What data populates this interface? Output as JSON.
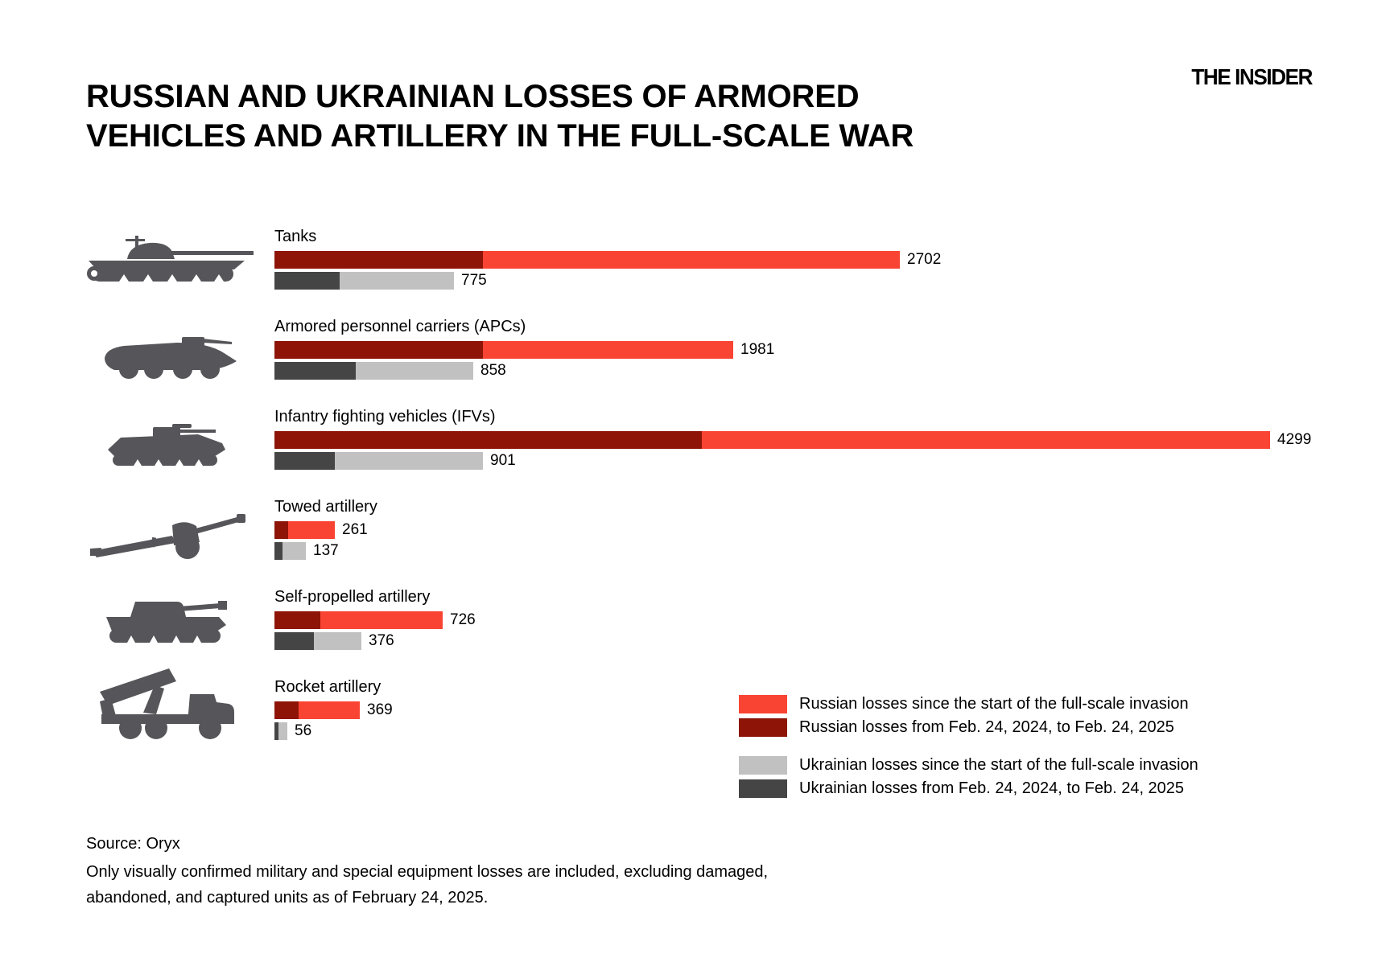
{
  "page": {
    "brand": "THE INSIDER",
    "source": "Source: Oryx",
    "note": "Only visually confirmed military and special equipment losses are included, excluding damaged, abandoned, and captured units as of February 24, 2025."
  },
  "colors": {
    "background": "#FFFFFF",
    "text": "#000000",
    "russian_total": "#FA4433",
    "russian_year": "#8E1408",
    "ukrainian_total": "#C1C1C1",
    "ukrainian_year": "#454545",
    "icon": "#55555A"
  },
  "chart_data": {
    "type": "bar",
    "orientation": "horizontal",
    "title": "RUSSIAN AND UKRAINIAN LOSSES OF ARMORED VEHICLES AND ARTILLERY IN THE FULL-SCALE WAR",
    "title_lines": [
      "RUSSIAN AND UKRAINIAN LOSSES OF ARMORED",
      "VEHICLES AND ARTILLERY IN THE FULL-SCALE WAR"
    ],
    "grid": false,
    "legend_position": "bottom-right",
    "value_axis_max": 4299,
    "categories": [
      "Tanks",
      "Armored personnel carriers (APCs)",
      "Infantry fighting vehicles (IFVs)",
      "Towed artillery",
      "Self-propelled artillery",
      "Rocket artillery"
    ],
    "category_icons": [
      "tank-icon",
      "apc-icon",
      "ifv-icon",
      "towed-artillery-icon",
      "self-propelled-artillery-icon",
      "rocket-artillery-icon"
    ],
    "series": [
      {
        "name": "Russian losses since the start of the full-scale invasion",
        "labeled": true,
        "values": [
          2702,
          1981,
          4299,
          261,
          726,
          369
        ]
      },
      {
        "name": "Russian losses from Feb. 24, 2024, to Feb. 24, 2025",
        "labeled": false,
        "estimated_from_bars": true,
        "values": [
          900,
          900,
          1845,
          60,
          198,
          105
        ]
      },
      {
        "name": "Ukrainian losses since the start of the full-scale invasion",
        "labeled": true,
        "values": [
          775,
          858,
          901,
          137,
          376,
          56
        ]
      },
      {
        "name": "Ukrainian losses from Feb. 24, 2024, to Feb. 24, 2025",
        "labeled": false,
        "estimated_from_bars": true,
        "values": [
          280,
          350,
          262,
          34,
          170,
          19
        ]
      }
    ]
  }
}
